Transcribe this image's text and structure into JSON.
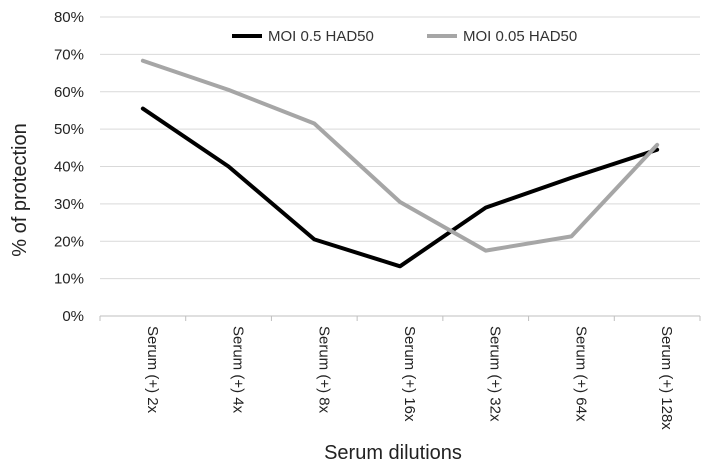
{
  "chart_data": {
    "type": "line",
    "xlabel": "Serum dilutions",
    "ylabel": "% of protection",
    "categories": [
      "Serum (+) 2x",
      "Serum (+) 4x",
      "Serum (+) 8x",
      "Serum (+) 16x",
      "Serum (+) 32x",
      "Serum (+) 64x",
      "Serum (+) 128x"
    ],
    "ylim": [
      0,
      80
    ],
    "yticks": [
      "0%",
      "10%",
      "20%",
      "30%",
      "40%",
      "50%",
      "60%",
      "70%",
      "80%"
    ],
    "grid": true,
    "legend_position": "top-center",
    "series": [
      {
        "name": "MOI 0.5 HAD50",
        "color": "#000000",
        "values": [
          55.5,
          40,
          20.5,
          13.3,
          29,
          37,
          44.5
        ]
      },
      {
        "name": "MOI 0.05 HAD50",
        "color": "#a6a6a6",
        "values": [
          68.3,
          60.5,
          51.5,
          30.5,
          17.5,
          21.3,
          45.8
        ]
      }
    ]
  }
}
